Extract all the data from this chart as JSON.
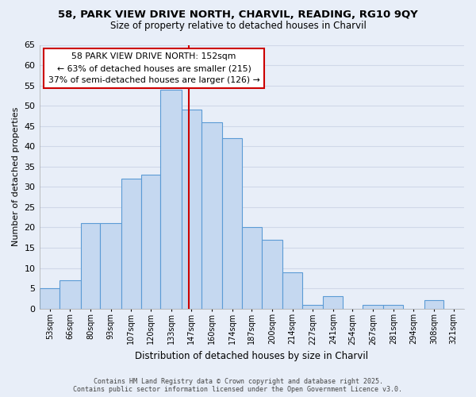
{
  "title": "58, PARK VIEW DRIVE NORTH, CHARVIL, READING, RG10 9QY",
  "subtitle": "Size of property relative to detached houses in Charvil",
  "xlabel": "Distribution of detached houses by size in Charvil",
  "ylabel": "Number of detached properties",
  "bin_labels": [
    "53sqm",
    "66sqm",
    "80sqm",
    "93sqm",
    "107sqm",
    "120sqm",
    "133sqm",
    "147sqm",
    "160sqm",
    "174sqm",
    "187sqm",
    "200sqm",
    "214sqm",
    "227sqm",
    "241sqm",
    "254sqm",
    "267sqm",
    "281sqm",
    "294sqm",
    "308sqm",
    "321sqm"
  ],
  "bin_edges": [
    53,
    66,
    80,
    93,
    107,
    120,
    133,
    147,
    160,
    174,
    187,
    200,
    214,
    227,
    241,
    254,
    267,
    281,
    294,
    308,
    321,
    334
  ],
  "counts": [
    5,
    7,
    21,
    21,
    32,
    33,
    54,
    49,
    46,
    42,
    20,
    17,
    9,
    1,
    3,
    0,
    1,
    1,
    0,
    2,
    0
  ],
  "bar_color": "#c5d8f0",
  "bar_edge_color": "#5b9bd5",
  "vline_x": 152,
  "vline_color": "#cc0000",
  "annotation_title": "58 PARK VIEW DRIVE NORTH: 152sqm",
  "annotation_line1": "← 63% of detached houses are smaller (215)",
  "annotation_line2": "37% of semi-detached houses are larger (126) →",
  "annotation_box_color": "#ffffff",
  "annotation_box_edge": "#cc0000",
  "ylim": [
    0,
    65
  ],
  "yticks": [
    0,
    5,
    10,
    15,
    20,
    25,
    30,
    35,
    40,
    45,
    50,
    55,
    60,
    65
  ],
  "grid_color": "#d0d8e8",
  "background_color": "#e8eef8",
  "footer1": "Contains HM Land Registry data © Crown copyright and database right 2025.",
  "footer2": "Contains public sector information licensed under the Open Government Licence v3.0."
}
